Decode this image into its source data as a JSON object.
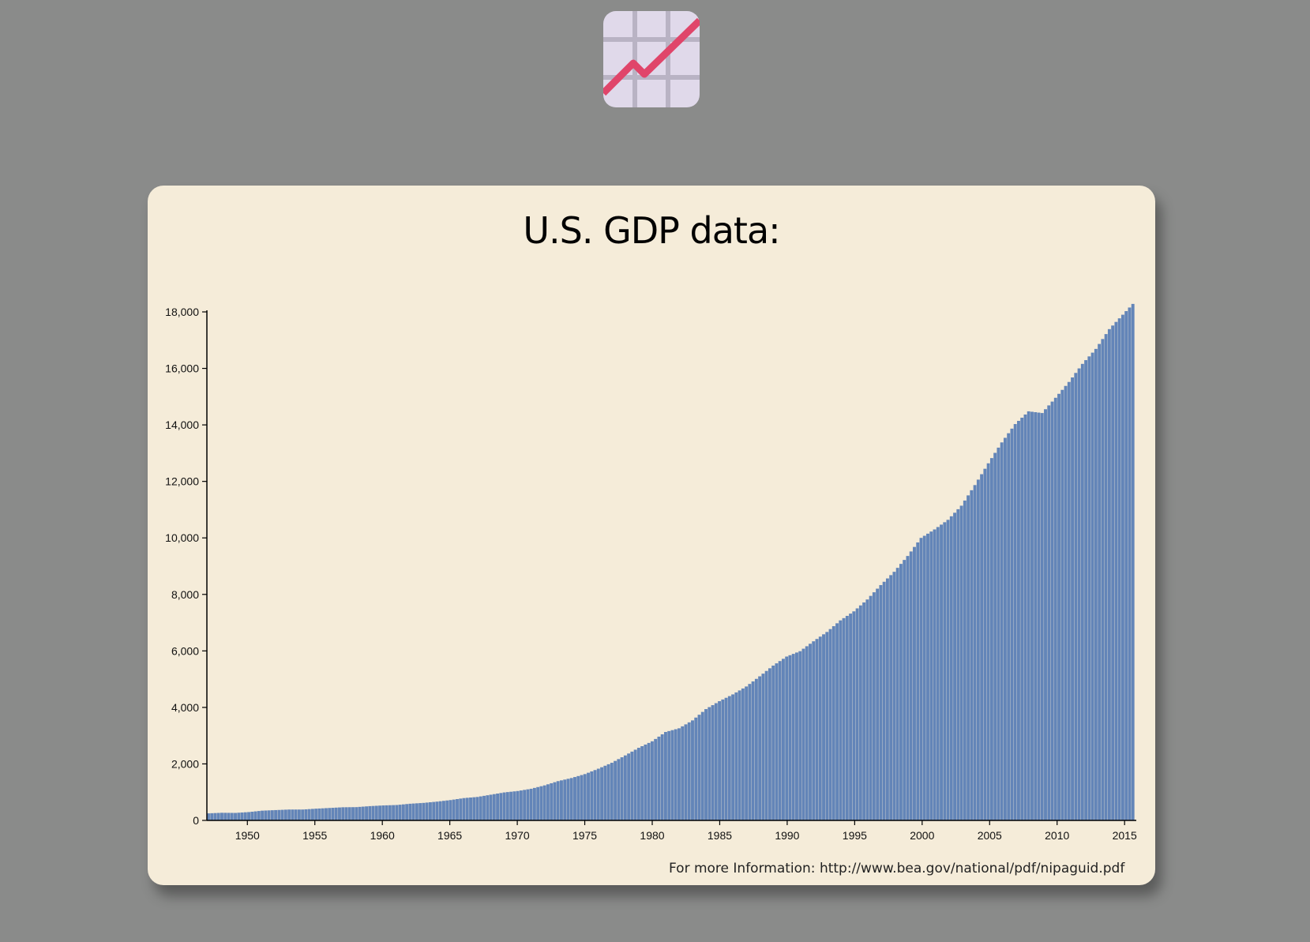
{
  "logo": {
    "icon": "chart-increasing-icon",
    "bg": "#e0d9ea",
    "grid": "#b9b3c4",
    "line": "#e0456a"
  },
  "title": "U.S. GDP data:",
  "footer": "For more Information: http://www.bea.gov/national/pdf/nipaguid.pdf",
  "colors": {
    "bar": "#6385b8",
    "card": "#f5ecd9",
    "page": "#8a8b8a"
  },
  "chart_data": {
    "type": "bar",
    "title": "U.S. GDP data:",
    "xlabel": "",
    "ylabel": "",
    "quarters_per_year": 4,
    "years": [
      1947,
      1948,
      1949,
      1950,
      1951,
      1952,
      1953,
      1954,
      1955,
      1956,
      1957,
      1958,
      1959,
      1960,
      1961,
      1962,
      1963,
      1964,
      1965,
      1966,
      1967,
      1968,
      1969,
      1970,
      1971,
      1972,
      1973,
      1974,
      1975,
      1976,
      1977,
      1978,
      1979,
      1980,
      1981,
      1982,
      1983,
      1984,
      1985,
      1986,
      1987,
      1988,
      1989,
      1990,
      1991,
      1992,
      1993,
      1994,
      1995,
      1996,
      1997,
      1998,
      1999,
      2000,
      2001,
      2002,
      2003,
      2004,
      2005,
      2006,
      2007,
      2008,
      2009,
      2010,
      2011,
      2012,
      2013,
      2014,
      2015
    ],
    "annual_values": [
      250,
      270,
      265,
      295,
      345,
      365,
      385,
      385,
      415,
      440,
      465,
      470,
      505,
      530,
      545,
      590,
      620,
      665,
      720,
      790,
      830,
      910,
      990,
      1040,
      1120,
      1240,
      1390,
      1500,
      1640,
      1830,
      2040,
      2300,
      2570,
      2800,
      3130,
      3260,
      3540,
      3940,
      4220,
      4460,
      4740,
      5100,
      5480,
      5800,
      5990,
      6340,
      6670,
      7080,
      7400,
      7820,
      8330,
      8800,
      9360,
      10000,
      10300,
      10640,
      11140,
      11870,
      12640,
      13380,
      14030,
      14480,
      14420,
      14960,
      15520,
      16160,
      16690,
      17390,
      17900
    ],
    "x_ticks": [
      1950,
      1955,
      1960,
      1965,
      1970,
      1975,
      1980,
      1985,
      1990,
      1995,
      2000,
      2005,
      2010,
      2015
    ],
    "y_ticks": [
      0,
      2000,
      4000,
      6000,
      8000,
      10000,
      12000,
      14000,
      16000,
      18000
    ],
    "ylim": [
      0,
      18000
    ],
    "xlim": [
      1947,
      2015.75
    ],
    "grid": false
  }
}
